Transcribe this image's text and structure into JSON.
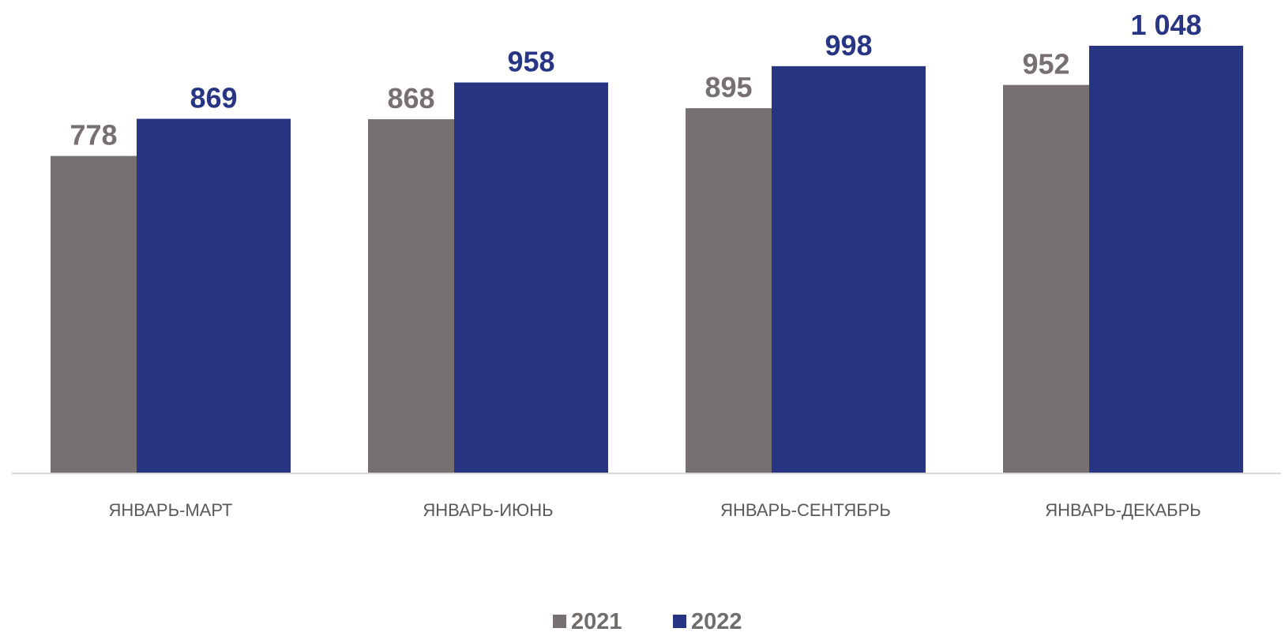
{
  "chart_data": {
    "type": "bar",
    "title": "",
    "xlabel": "",
    "ylabel": "",
    "categories": [
      "ЯНВАРЬ-МАРТ",
      "ЯНВАРЬ-ИЮНЬ",
      "ЯНВАРЬ-СЕНТЯБРЬ",
      "ЯНВАРЬ-ДЕКАБРЬ"
    ],
    "series": [
      {
        "name": "2021",
        "values": [
          778,
          868,
          895,
          952
        ],
        "labels": [
          "778",
          "868",
          "895",
          "952"
        ],
        "color": "#767170"
      },
      {
        "name": "2022",
        "values": [
          869,
          958,
          998,
          1048
        ],
        "labels": [
          "869",
          "958",
          "998",
          "1 048"
        ],
        "color": "#283583"
      }
    ],
    "ylim": [
      0,
      1048
    ],
    "grid": false,
    "legend": "bottom-center",
    "axis_color": "#d9d9d9"
  }
}
